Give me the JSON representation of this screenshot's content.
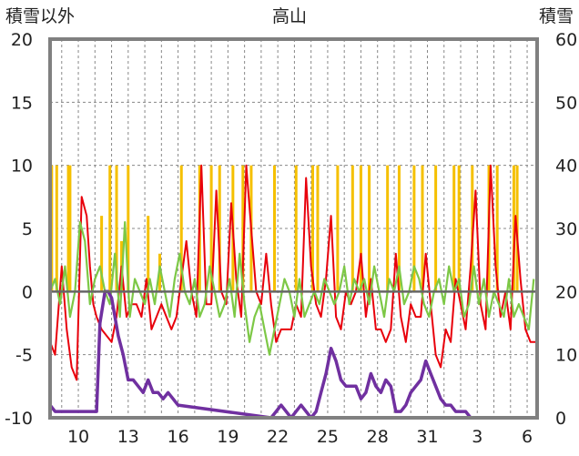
{
  "chart_data": {
    "type": "line",
    "title": "高山",
    "ylabel_left": "積雪以外",
    "ylabel_right": "積雪",
    "ylim_left": [
      -10,
      20
    ],
    "ylim_right": [
      0,
      60
    ],
    "yticks_left": [
      "20",
      "15",
      "10",
      "5",
      "0",
      "-5",
      "-10"
    ],
    "yticks_right": [
      "60",
      "50",
      "40",
      "30",
      "20",
      "10",
      "0"
    ],
    "xlim": [
      8.3,
      7.6
    ],
    "xticks": [
      "10",
      "13",
      "16",
      "19",
      "22",
      "25",
      "28",
      "31",
      "3",
      "6"
    ],
    "grid": true,
    "colors": {
      "precip": "#f5c000",
      "temp": "#e8000b",
      "other": "#7dc846",
      "bar": "#2e75b6",
      "snow": "#7030a0",
      "frame": "#808080",
      "zero": "#666666",
      "grid": "#888888"
    },
    "series": [
      {
        "axis": "left",
        "type": "bar",
        "values_note": "",
        "x": [
          8.4,
          8.7,
          9.4,
          9.5,
          11.4,
          11.9,
          12.3,
          12.6,
          13.0,
          14.2,
          14.9,
          16.2,
          17.3,
          18.0,
          18.5,
          19.3,
          19.9,
          20.4,
          21.8,
          23.1,
          24.1,
          24.4,
          25.6,
          26.5,
          27.0,
          27.5,
          28.6,
          29.3,
          30.2,
          30.7,
          31.5,
          32.6,
          32.9,
          33.7,
          34.7,
          35.2,
          36.2,
          36.4
        ],
        "values": [
          10,
          10,
          10,
          10,
          6,
          10,
          10,
          4,
          10,
          6,
          3,
          10,
          10,
          10,
          10,
          10,
          10,
          10,
          10,
          10,
          10,
          10,
          10,
          10,
          10,
          10,
          10,
          10,
          10,
          10,
          10,
          10,
          10,
          10,
          10,
          10,
          10,
          10
        ]
      },
      {
        "axis": "left",
        "type": "line",
        "x": [
          8.3,
          8.6,
          9.0,
          9.3,
          9.6,
          9.9,
          10.2,
          10.5,
          10.7,
          10.9,
          11.1,
          11.4,
          11.7,
          12.0,
          12.3,
          12.6,
          12.9,
          13.2,
          13.5,
          13.8,
          14.1,
          14.4,
          14.7,
          15.0,
          15.3,
          15.6,
          15.9,
          16.2,
          16.5,
          16.8,
          17.1,
          17.4,
          17.7,
          18.0,
          18.3,
          18.6,
          18.9,
          19.2,
          19.5,
          19.8,
          20.1,
          20.4,
          20.7,
          21.0,
          21.3,
          21.6,
          21.9,
          22.2,
          22.5,
          22.8,
          23.1,
          23.4,
          23.7,
          24.0,
          24.3,
          24.6,
          24.9,
          25.2,
          25.5,
          25.8,
          26.1,
          26.4,
          26.7,
          27.0,
          27.3,
          27.6,
          27.9,
          28.2,
          28.5,
          28.8,
          29.1,
          29.4,
          29.7,
          30.0,
          30.3,
          30.6,
          30.9,
          31.2,
          31.5,
          31.8,
          32.1,
          32.4,
          32.7,
          33.0,
          33.3,
          33.6,
          33.9,
          34.2,
          34.5,
          34.8,
          35.1,
          35.4,
          35.7,
          36.0,
          36.3,
          36.6,
          36.9,
          37.2,
          37.5
        ],
        "values": [
          -4,
          -5,
          2,
          -3,
          -6,
          -7,
          7.5,
          6,
          2,
          -1,
          -2,
          -3,
          -3.5,
          -4,
          -2,
          2,
          -2,
          -1,
          -1,
          -2,
          1,
          -3,
          -2,
          -1,
          -2,
          -3,
          -2,
          1,
          4,
          0,
          -2,
          10,
          -1,
          -1,
          8,
          0,
          -1,
          7,
          1,
          -2,
          10,
          5,
          0,
          -1,
          3,
          -1,
          -4,
          -3,
          -3,
          -3,
          -1,
          -2,
          9,
          2,
          -1,
          -2,
          1,
          6,
          -2,
          -3,
          0,
          -1,
          0,
          3,
          -2,
          1,
          -3,
          -3,
          -4,
          -3,
          3,
          -2,
          -4,
          -1,
          -2,
          -2,
          3,
          -1,
          -5,
          -6,
          -3,
          -4,
          1,
          -1,
          -3,
          2,
          8,
          -1,
          -3,
          10,
          2,
          -2,
          0,
          -3,
          6,
          1,
          -3,
          -4,
          -4
        ]
      },
      {
        "axis": "left",
        "type": "line",
        "x": [
          8.3,
          8.6,
          8.9,
          9.2,
          9.5,
          9.8,
          10.1,
          10.4,
          10.7,
          11.0,
          11.3,
          11.6,
          11.9,
          12.2,
          12.5,
          12.8,
          13.1,
          13.4,
          13.7,
          14.0,
          14.3,
          14.6,
          14.9,
          15.2,
          15.5,
          15.8,
          16.1,
          16.4,
          16.7,
          17.0,
          17.3,
          17.6,
          17.9,
          18.2,
          18.5,
          18.8,
          19.1,
          19.4,
          19.7,
          20.0,
          20.3,
          20.6,
          20.9,
          21.2,
          21.5,
          21.8,
          22.1,
          22.4,
          22.7,
          23.0,
          23.3,
          23.6,
          23.9,
          24.2,
          24.5,
          24.8,
          25.1,
          25.4,
          25.7,
          26.0,
          26.3,
          26.6,
          26.9,
          27.2,
          27.5,
          27.8,
          28.1,
          28.4,
          28.7,
          29.0,
          29.3,
          29.6,
          29.9,
          30.2,
          30.5,
          30.8,
          31.1,
          31.4,
          31.7,
          32.0,
          32.3,
          32.6,
          32.9,
          33.2,
          33.5,
          33.8,
          34.1,
          34.4,
          34.7,
          35.0,
          35.3,
          35.6,
          35.9,
          36.2,
          36.5,
          36.8,
          37.1,
          37.4
        ],
        "values": [
          0,
          1,
          -1,
          2,
          -2,
          0,
          5.5,
          4,
          -1,
          1,
          2,
          0,
          -1,
          3,
          -2,
          5.5,
          -2,
          1,
          0,
          -1,
          1,
          -1,
          2,
          0,
          -2,
          1,
          3,
          0,
          -1,
          1,
          -2,
          -1,
          2,
          0,
          -2,
          -1,
          1,
          -2,
          3,
          -1,
          -4,
          -2,
          -1,
          -3,
          -5,
          -3,
          -1,
          1,
          0,
          -2,
          1,
          -2,
          -1,
          0,
          -1,
          1,
          0,
          -1,
          0,
          2,
          -1,
          1,
          0,
          1,
          -1,
          2,
          0,
          -2,
          1,
          0,
          2,
          -1,
          0,
          2,
          1,
          -1,
          -2,
          0,
          1,
          -1,
          2,
          0,
          1,
          -2,
          -1,
          2,
          -1,
          1,
          -2,
          0,
          -1,
          -2,
          1,
          -2,
          -1,
          -2,
          -3,
          1
        ]
      },
      {
        "axis": "right",
        "type": "line",
        "x": [
          8.3,
          8.6,
          8.8,
          11.1,
          11.3,
          11.6,
          11.8,
          12.0,
          12.4,
          12.7,
          13.0,
          13.3,
          13.6,
          13.9,
          14.2,
          14.5,
          14.8,
          15.1,
          15.4,
          15.7,
          16.0,
          21.6,
          21.9,
          22.2,
          22.5,
          22.8,
          23.1,
          23.4,
          23.7,
          24.0,
          24.3,
          24.6,
          24.9,
          25.2,
          25.5,
          25.8,
          26.1,
          26.4,
          26.7,
          27.0,
          27.3,
          27.6,
          27.9,
          28.2,
          28.5,
          28.8,
          29.1,
          29.4,
          29.7,
          30.0,
          30.3,
          30.6,
          30.9,
          31.2,
          31.5,
          31.8,
          32.1,
          32.4,
          32.7,
          33.0,
          33.3,
          33.6,
          33.9,
          34.2,
          34.5,
          37.2,
          37.4
        ],
        "values": [
          2,
          1,
          1,
          1,
          15,
          20,
          20,
          19,
          13,
          10,
          6,
          6,
          5,
          4,
          6,
          4,
          4,
          3,
          4,
          3,
          2,
          0,
          1,
          2,
          1,
          0,
          1,
          2,
          1,
          0,
          1,
          4,
          7,
          11,
          9,
          6,
          5,
          5,
          5,
          3,
          4,
          7,
          5,
          4,
          6,
          5,
          1,
          1,
          2,
          4,
          5,
          6,
          9,
          7,
          5,
          3,
          2,
          2,
          1,
          1,
          1,
          0,
          0,
          0,
          0,
          0,
          0
        ]
      }
    ]
  }
}
